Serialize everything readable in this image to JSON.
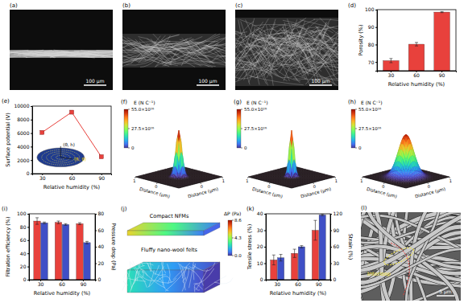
{
  "figure": {
    "images": [
      {
        "label": "(a)",
        "scale_bar": "100 μm"
      },
      {
        "label": "(b)",
        "scale_bar": "100 μm"
      },
      {
        "label": "(c)",
        "scale_bar": "100 μm"
      }
    ],
    "field_maps": {
      "colorbar_title": "E (N C⁻¹)",
      "colorbar_range": [
        0,
        5.5e+17
      ],
      "colorbar_ticks": [
        0,
        {
          "value": 2.75e+17,
          "label": "27.5×10¹⁶"
        },
        {
          "value": 5.5e+17,
          "label": "55.0×10¹⁶"
        }
      ],
      "axis_label": "Distance (μm)",
      "axis_ticks": [
        0,
        1
      ],
      "maps": [
        {
          "label": "(f)",
          "peak": 5.5e+17,
          "spread": 0.1
        },
        {
          "label": "(g)",
          "peak": 5.5e+17,
          "spread": 0.08
        },
        {
          "label": "(h)",
          "peak": 5e+17,
          "spread": 0.25
        }
      ]
    },
    "diagram": {
      "label": "(j)",
      "top": "Compact NFMs",
      "bottom": "Fluffy nano-wool felts",
      "colorbar_title": "ΔP (Pa)",
      "colorbar_range": [
        0,
        8.6
      ],
      "colorbar_ticks": [
        {
          "value": 0,
          "label": "0.0"
        },
        4.3,
        8.6
      ]
    },
    "sem": {
      "label": "(l)",
      "annotation": "Interloop",
      "scale_bar": "5 μm"
    }
  },
  "chart_data": [
    {
      "label": "(d)",
      "type": "bar",
      "categories": [
        "30",
        "60",
        "90"
      ],
      "x_label": "Relative humidity (%)",
      "y_label": "Porosity (%)",
      "ylim": [
        65,
        100
      ],
      "yticks": [
        70,
        80,
        90,
        100
      ],
      "values": [
        70.8,
        80.2,
        98.6
      ],
      "errors": [
        1.2,
        1.0,
        0.3
      ],
      "color": "#e8413c"
    },
    {
      "label": "(e)",
      "type": "line",
      "x": [
        30,
        60,
        90
      ],
      "values": [
        6100,
        9100,
        2500
      ],
      "x_label": "Relative humidity (%)",
      "y_label": "Surface potential (V)",
      "xlim": [
        20,
        100
      ],
      "xticks": [
        30,
        60,
        90
      ],
      "ylim": [
        0,
        10000
      ],
      "yticks": [
        0,
        2000,
        4000,
        6000,
        8000,
        10000
      ],
      "color": "#e8413c",
      "marker": "square",
      "annotations": [
        "(θ, h)",
        "(R, θ)"
      ]
    },
    {
      "label": "(i)",
      "type": "bar",
      "categories": [
        "30",
        "60",
        "90"
      ],
      "x_label": "Relative humidity (%)",
      "y_label": "Filtration efficiency (%)",
      "y2_label": "Pressure drop (Pa)",
      "ylim": [
        0,
        100
      ],
      "yticks": [
        0,
        20,
        40,
        60,
        80,
        100
      ],
      "y2lim": [
        0,
        80
      ],
      "y2ticks": [
        0,
        20,
        40,
        60,
        80
      ],
      "series": [
        {
          "color": "#e8413c",
          "values": [
            89,
            87,
            85
          ],
          "errors": [
            5,
            2,
            1.5
          ]
        },
        {
          "color": "#3f4fc6",
          "axis": "y2",
          "values": [
            69,
            67,
            45
          ],
          "errors": [
            1,
            1,
            1.5
          ]
        }
      ]
    },
    {
      "label": "(k)",
      "type": "bar",
      "categories": [
        "30",
        "60",
        "90"
      ],
      "x_label": "Relative humidity (%)",
      "y_label": "Tensile stress (%)",
      "y2_label": "Strain (%)",
      "ylim": [
        0,
        40
      ],
      "yticks": [
        0,
        10,
        20,
        30,
        40
      ],
      "y2lim": [
        0,
        120
      ],
      "y2ticks": [
        0,
        30,
        60,
        90,
        120
      ],
      "series": [
        {
          "color": "#e8413c",
          "values": [
            12,
            16,
            30
          ],
          "errors": [
            3,
            2.5,
            6
          ]
        },
        {
          "color": "#3f4fc6",
          "axis": "y2",
          "values": [
            40,
            60,
            118
          ],
          "errors": [
            6,
            2,
            1.5
          ]
        }
      ]
    }
  ]
}
